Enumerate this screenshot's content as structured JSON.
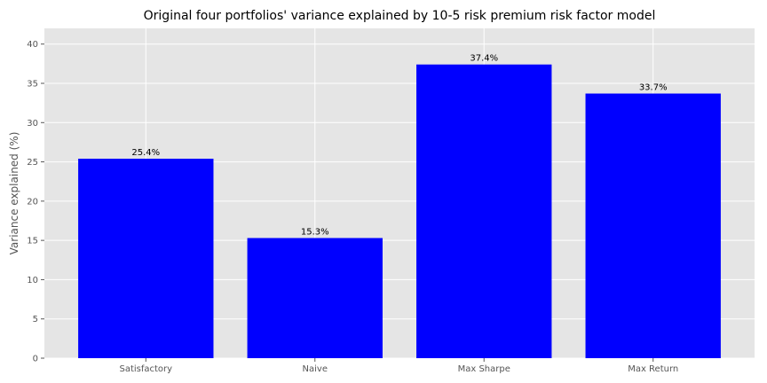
{
  "chart_data": {
    "type": "bar",
    "title": "Original four portfolios' variance explained by 10-5 risk premium risk factor model",
    "xlabel": "",
    "ylabel": "Variance explained (%)",
    "categories": [
      "Satisfactory",
      "Naive",
      "Max Sharpe",
      "Max Return"
    ],
    "values": [
      25.4,
      15.3,
      37.4,
      33.7
    ],
    "data_labels": [
      "25.4%",
      "15.3%",
      "37.4%",
      "33.7%"
    ],
    "ylim": [
      0,
      42
    ],
    "yticks": [
      0,
      5,
      10,
      15,
      20,
      25,
      30,
      35,
      40
    ],
    "grid": true,
    "legend": "none",
    "colors": {
      "bar": "#0000ff",
      "plot_background": "#e5e5e5",
      "grid": "#ffffff"
    }
  }
}
